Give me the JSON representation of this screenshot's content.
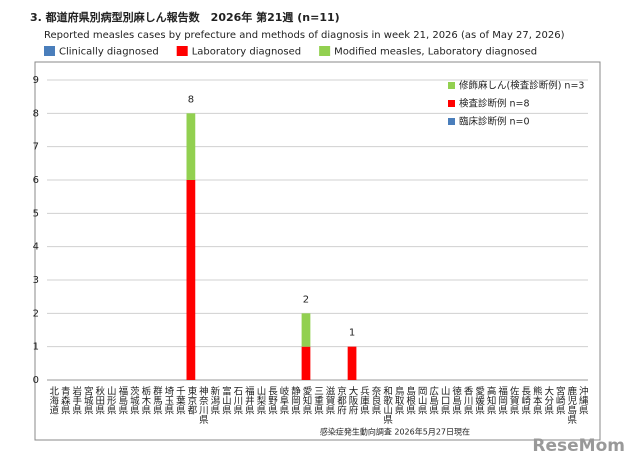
{
  "chart_data": {
    "type": "stacked-bar",
    "title": "3. 都道府県別病型別麻しん報告数　2026年 第21週 (n=11)",
    "subtitle": "Reported measles cases by prefecture and methods of diagnosis in week 21, 2026 (as of May 27, 2026)",
    "categories": [
      "北海道",
      "青森県",
      "岩手県",
      "宮城県",
      "秋田県",
      "山形県",
      "福島県",
      "茨城県",
      "栃木県",
      "群馬県",
      "埼玉県",
      "千葉県",
      "東京都",
      "神奈川県",
      "新潟県",
      "富山県",
      "石川県",
      "福井県",
      "山梨県",
      "長野県",
      "岐阜県",
      "静岡県",
      "愛知県",
      "三重県",
      "滋賀県",
      "京都府",
      "大阪府",
      "兵庫県",
      "奈良県",
      "和歌山県",
      "鳥取県",
      "島根県",
      "岡山県",
      "広島県",
      "山口県",
      "徳島県",
      "香川県",
      "愛媛県",
      "高知県",
      "福岡県",
      "佐賀県",
      "長崎県",
      "熊本県",
      "大分県",
      "宮崎県",
      "鹿児島県",
      "沖縄県"
    ],
    "series": [
      {
        "name": "Clinically diagnosed",
        "color": "#4a7ebb",
        "values": [
          0,
          0,
          0,
          0,
          0,
          0,
          0,
          0,
          0,
          0,
          0,
          0,
          0,
          0,
          0,
          0,
          0,
          0,
          0,
          0,
          0,
          0,
          0,
          0,
          0,
          0,
          0,
          0,
          0,
          0,
          0,
          0,
          0,
          0,
          0,
          0,
          0,
          0,
          0,
          0,
          0,
          0,
          0,
          0,
          0,
          0,
          0
        ]
      },
      {
        "name": "Laboratory diagnosed",
        "color": "#ff0000",
        "values": [
          0,
          0,
          0,
          0,
          0,
          0,
          0,
          0,
          0,
          0,
          0,
          0,
          6,
          0,
          0,
          0,
          0,
          0,
          0,
          0,
          0,
          0,
          1,
          0,
          0,
          0,
          1,
          0,
          0,
          0,
          0,
          0,
          0,
          0,
          0,
          0,
          0,
          0,
          0,
          0,
          0,
          0,
          0,
          0,
          0,
          0,
          0
        ]
      },
      {
        "name": "Modified measles, Laboratory diagnosed",
        "color": "#92d050",
        "values": [
          0,
          0,
          0,
          0,
          0,
          0,
          0,
          0,
          0,
          0,
          0,
          0,
          2,
          0,
          0,
          0,
          0,
          0,
          0,
          0,
          0,
          0,
          1,
          0,
          0,
          0,
          0,
          0,
          0,
          0,
          0,
          0,
          0,
          0,
          0,
          0,
          0,
          0,
          0,
          0,
          0,
          0,
          0,
          0,
          0,
          0,
          0
        ]
      }
    ],
    "totals": [
      null,
      null,
      null,
      null,
      null,
      null,
      null,
      null,
      null,
      null,
      null,
      null,
      8,
      null,
      null,
      null,
      null,
      null,
      null,
      null,
      null,
      null,
      2,
      null,
      null,
      null,
      1,
      null,
      null,
      null,
      null,
      null,
      null,
      null,
      null,
      null,
      null,
      null,
      null,
      null,
      null,
      null,
      null,
      null,
      null,
      null,
      null
    ],
    "inner_legend": [
      "修飾麻しん(検査診断例) n=3",
      "検査診断例 n=8",
      "臨床診断例 n=0"
    ],
    "ylim": [
      0,
      9
    ],
    "yticks": [
      0,
      1,
      2,
      3,
      4,
      5,
      6,
      7,
      8,
      9
    ],
    "grid": true,
    "footnote": "感染症発生動向調査 2026年5月27日現在",
    "watermark": "ReseMom"
  }
}
